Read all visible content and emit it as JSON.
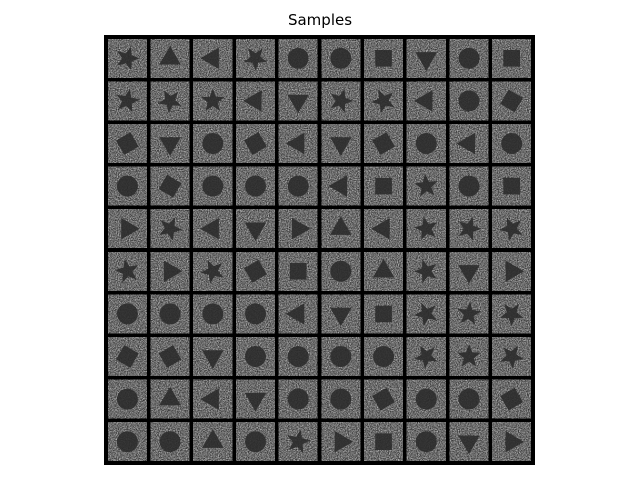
{
  "title": "Samples",
  "grid": {
    "rows": 10,
    "cols": 10
  },
  "colors": {
    "background": "#ffffff",
    "border": "#000000",
    "noise_light": "#b8b8b8",
    "shape_dark": "#2a2a2a"
  },
  "samples": [
    [
      "star",
      "triangle",
      "triangle",
      "star",
      "circle",
      "circle",
      "square",
      "triangle",
      "circle",
      "square"
    ],
    [
      "star",
      "star",
      "star",
      "triangle",
      "triangle",
      "star",
      "star",
      "triangle",
      "circle",
      "square"
    ],
    [
      "square",
      "triangle",
      "circle",
      "square",
      "triangle",
      "triangle",
      "square",
      "circle",
      "triangle",
      "circle"
    ],
    [
      "circle",
      "square",
      "circle",
      "circle",
      "circle",
      "triangle",
      "square",
      "star",
      "circle",
      "square"
    ],
    [
      "triangle",
      "star",
      "triangle",
      "triangle",
      "triangle",
      "triangle",
      "triangle",
      "star",
      "star",
      "star"
    ],
    [
      "star",
      "triangle",
      "star",
      "square",
      "square",
      "circle",
      "triangle",
      "star",
      "triangle",
      "triangle"
    ],
    [
      "circle",
      "circle",
      "circle",
      "circle",
      "triangle",
      "triangle",
      "square",
      "star",
      "star",
      "star"
    ],
    [
      "square",
      "square",
      "triangle",
      "circle",
      "circle",
      "circle",
      "circle",
      "star",
      "star",
      "star"
    ],
    [
      "circle",
      "triangle",
      "triangle",
      "triangle",
      "circle",
      "circle",
      "square",
      "circle",
      "circle",
      "square"
    ],
    [
      "circle",
      "circle",
      "triangle",
      "circle",
      "star",
      "triangle",
      "square",
      "circle",
      "triangle",
      "triangle"
    ]
  ]
}
